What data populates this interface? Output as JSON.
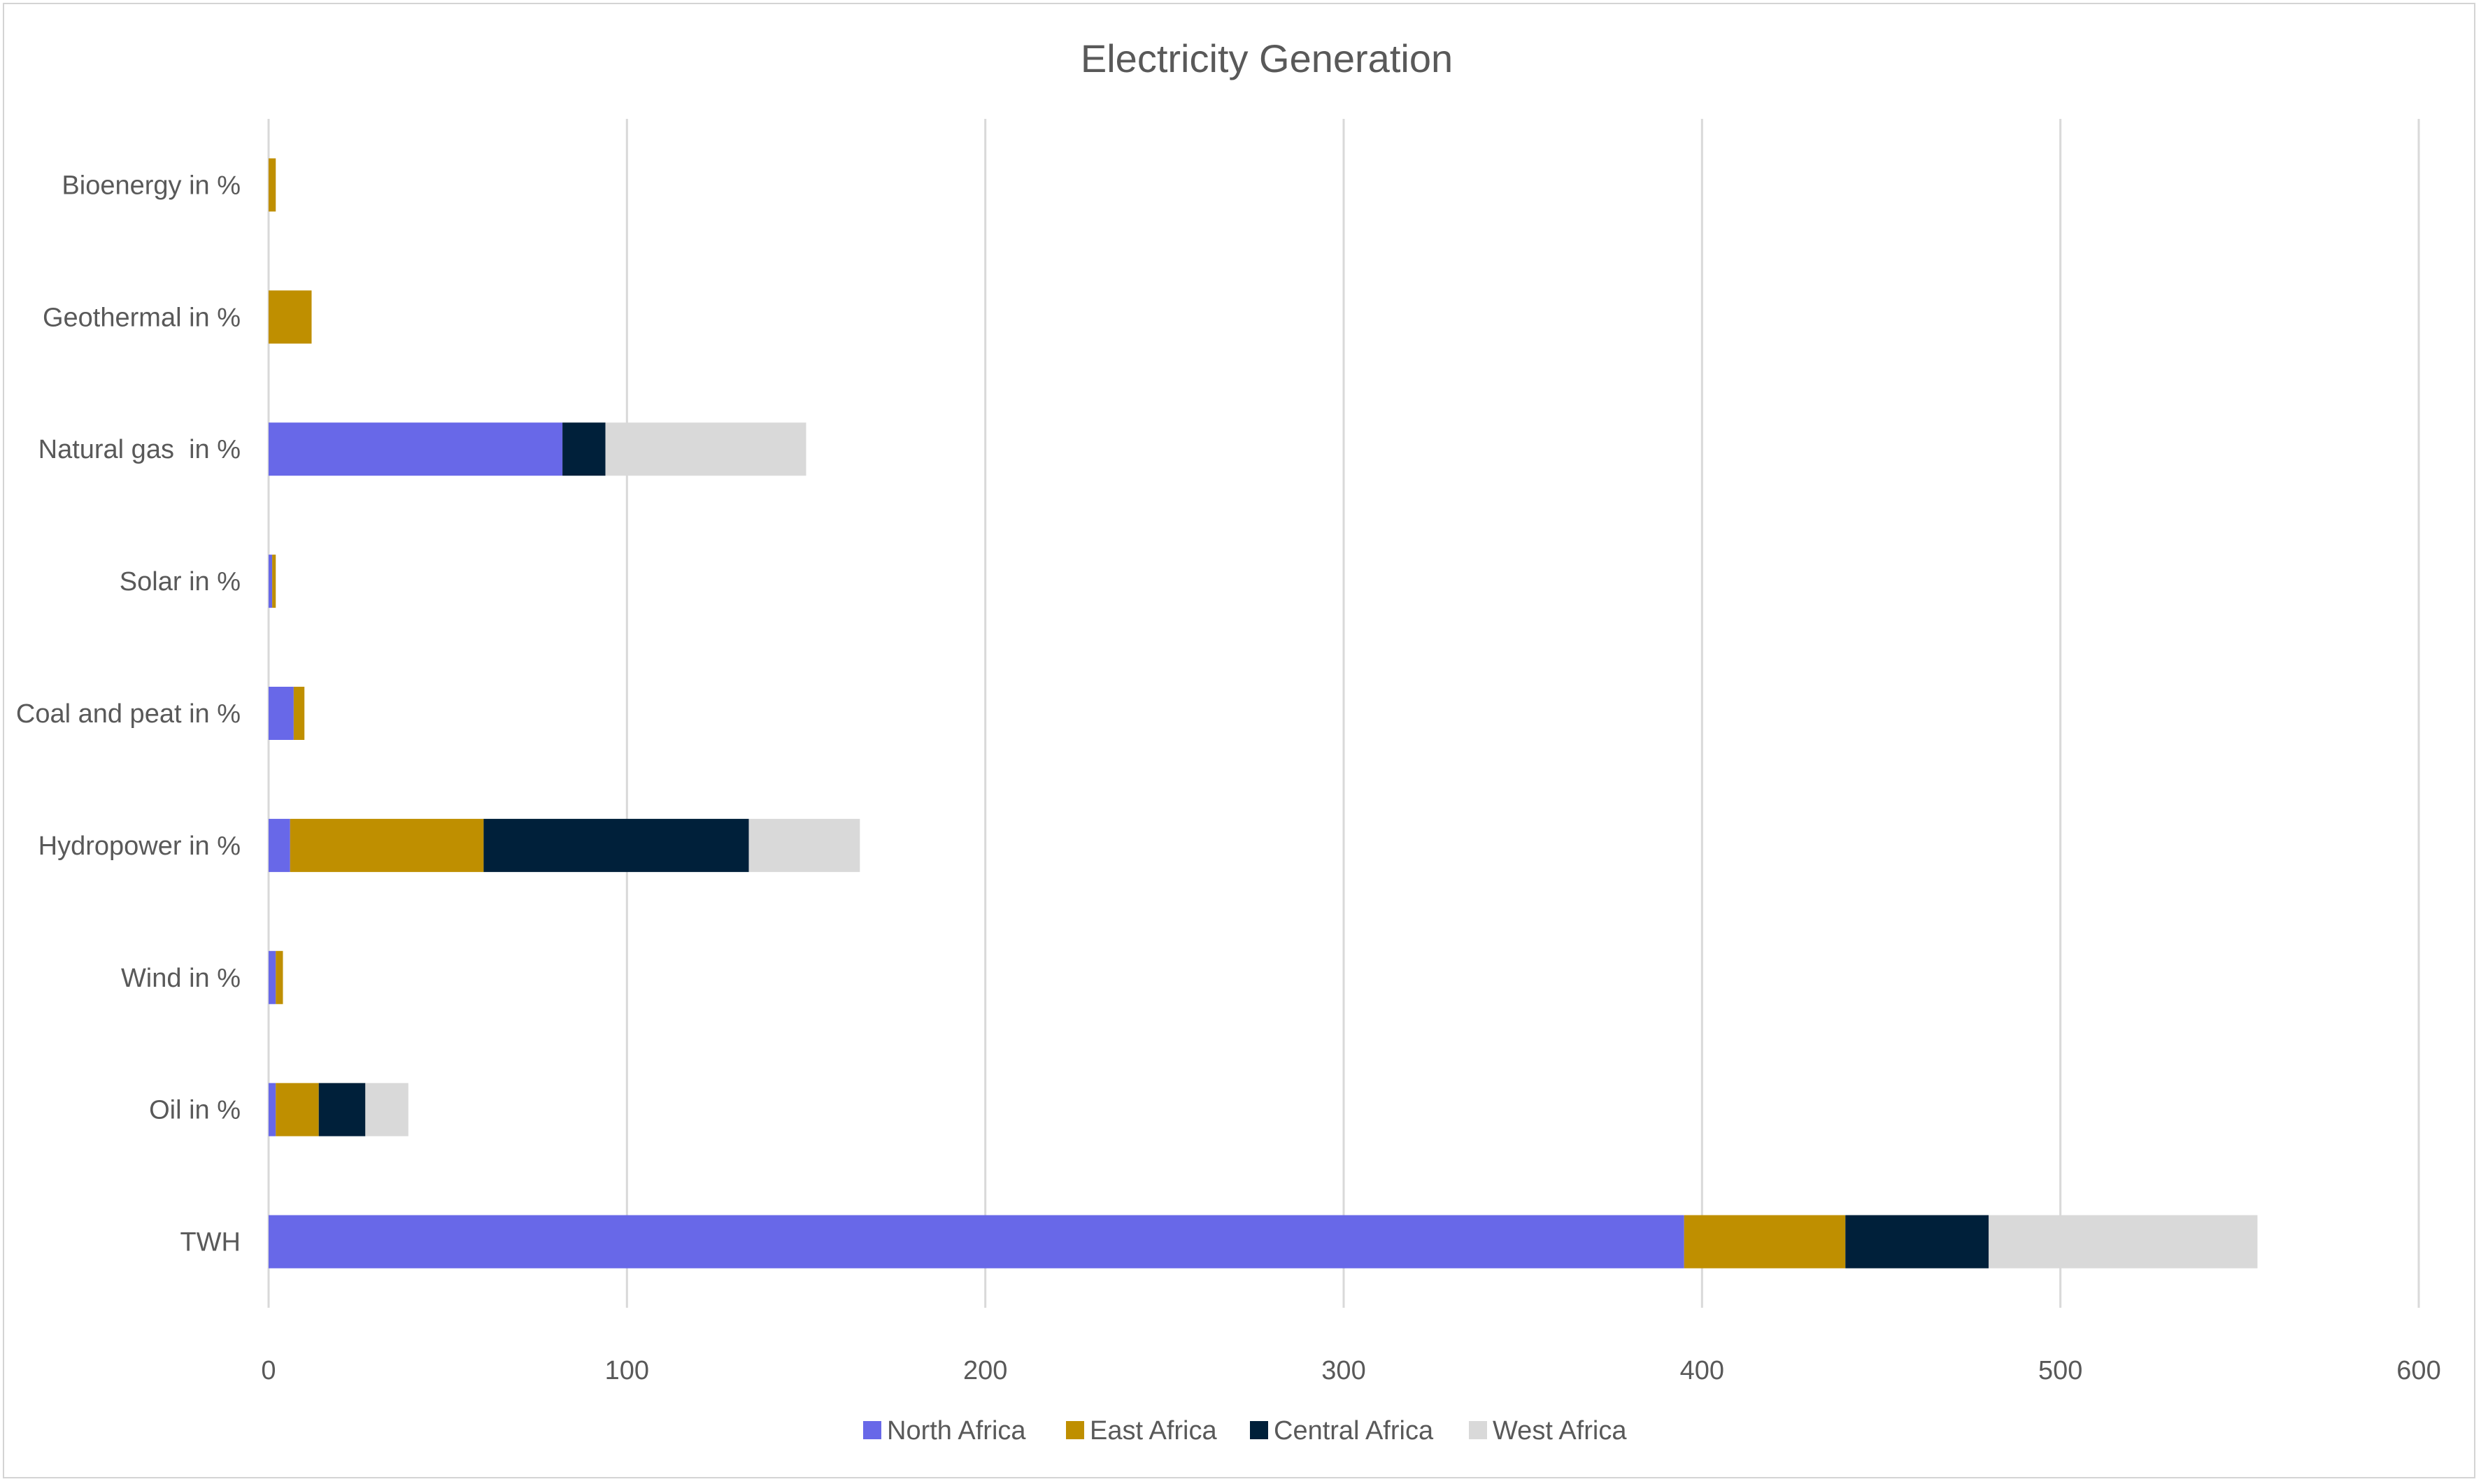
{
  "chart_data": {
    "type": "bar",
    "orientation": "horizontal",
    "stacked": true,
    "title": "Electricity Generation",
    "xlabel": "",
    "ylabel": "",
    "categories": [
      "Bioenergy in %",
      "Geothermal in %",
      "Natural gas  in %",
      "Solar in %",
      "Coal and peat in %",
      "Hydropower in %",
      "Wind in %",
      "Oil in %",
      "TWH"
    ],
    "series": [
      {
        "name": "North Africa",
        "color": "#6868E8",
        "values": [
          0,
          0,
          82,
          1,
          7,
          6,
          2,
          2,
          395
        ]
      },
      {
        "name": "East Africa",
        "color": "#BF8F00",
        "values": [
          2,
          12,
          0,
          1,
          3,
          54,
          2,
          12,
          45
        ]
      },
      {
        "name": "Central Africa",
        "color": "#00203A",
        "values": [
          0,
          0,
          12,
          0,
          0,
          74,
          0,
          13,
          40
        ]
      },
      {
        "name": "West Africa",
        "color": "#D9D9D9",
        "values": [
          0,
          0,
          56,
          0,
          0,
          31,
          0,
          12,
          75
        ]
      }
    ],
    "xlim": [
      0,
      600
    ],
    "xticks": [
      0,
      100,
      200,
      300,
      400,
      500,
      600
    ],
    "grid": true,
    "legend_position": "bottom"
  }
}
